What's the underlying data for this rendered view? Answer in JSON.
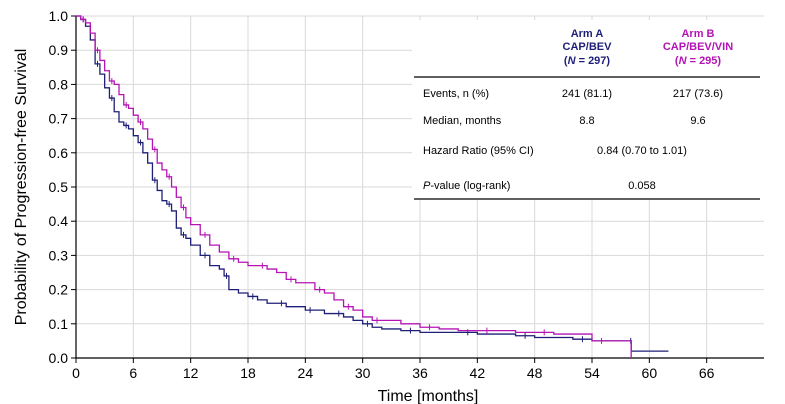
{
  "chart_data": {
    "type": "line",
    "title": "",
    "xlabel": "Time [months]",
    "ylabel": "Probability of Progression-free Survival",
    "xlim": [
      0,
      72
    ],
    "ylim": [
      0,
      1.0
    ],
    "xticks": [
      0,
      6,
      12,
      18,
      24,
      30,
      36,
      42,
      48,
      54,
      60,
      66
    ],
    "yticks": [
      "0.0",
      "0.1",
      "0.2",
      "0.3",
      "0.4",
      "0.5",
      "0.6",
      "0.7",
      "0.8",
      "0.9",
      "1.0"
    ],
    "grid": true,
    "series": [
      {
        "name": "Arm A",
        "color": "#1f1f78",
        "x": [
          0,
          0.5,
          1,
          1.5,
          2,
          2.5,
          3,
          3.5,
          4,
          4.5,
          5,
          5.5,
          6,
          6.5,
          7,
          7.5,
          8,
          8.5,
          9,
          9.5,
          10,
          10.5,
          11,
          11.5,
          12,
          13,
          14,
          15,
          15.5,
          16,
          17,
          18,
          19,
          20,
          21,
          22,
          23,
          24,
          25,
          26,
          27,
          28,
          29,
          30,
          31,
          32,
          34,
          36,
          38,
          40,
          42,
          44,
          46,
          48,
          50,
          52,
          54,
          56,
          58,
          58.1,
          62
        ],
        "y": [
          1.0,
          0.99,
          0.97,
          0.93,
          0.86,
          0.83,
          0.79,
          0.76,
          0.72,
          0.69,
          0.68,
          0.67,
          0.65,
          0.63,
          0.6,
          0.57,
          0.52,
          0.49,
          0.46,
          0.45,
          0.43,
          0.38,
          0.36,
          0.35,
          0.33,
          0.3,
          0.27,
          0.26,
          0.24,
          0.2,
          0.19,
          0.18,
          0.17,
          0.16,
          0.16,
          0.15,
          0.15,
          0.14,
          0.14,
          0.13,
          0.13,
          0.12,
          0.11,
          0.1,
          0.09,
          0.085,
          0.08,
          0.075,
          0.075,
          0.075,
          0.07,
          0.07,
          0.065,
          0.06,
          0.06,
          0.055,
          0.05,
          0.05,
          0.05,
          0.02,
          0.02
        ]
      },
      {
        "name": "Arm B",
        "color": "#b414b4",
        "x": [
          0,
          0.5,
          1,
          1.5,
          2,
          2.5,
          3,
          3.5,
          4,
          4.5,
          5,
          5.5,
          6,
          6.5,
          7,
          7.5,
          8,
          8.5,
          9,
          9.5,
          10,
          10.5,
          11,
          11.5,
          12,
          13,
          14,
          15,
          16,
          17,
          18,
          19,
          20,
          21,
          22,
          23,
          24,
          25,
          26,
          27,
          28,
          29,
          30,
          31,
          32,
          34,
          36,
          38,
          40,
          42,
          44,
          46,
          48,
          50,
          52,
          54,
          56,
          58,
          58.1
        ],
        "y": [
          1.0,
          0.99,
          0.98,
          0.95,
          0.9,
          0.87,
          0.84,
          0.81,
          0.8,
          0.77,
          0.74,
          0.73,
          0.71,
          0.69,
          0.67,
          0.64,
          0.61,
          0.57,
          0.55,
          0.53,
          0.5,
          0.47,
          0.44,
          0.41,
          0.39,
          0.36,
          0.33,
          0.31,
          0.29,
          0.28,
          0.27,
          0.27,
          0.26,
          0.25,
          0.23,
          0.22,
          0.22,
          0.2,
          0.19,
          0.17,
          0.15,
          0.14,
          0.12,
          0.11,
          0.11,
          0.1,
          0.09,
          0.085,
          0.08,
          0.08,
          0.08,
          0.075,
          0.075,
          0.07,
          0.07,
          0.05,
          0.05,
          0.05,
          0.0
        ]
      }
    ],
    "table": {
      "columns": [
        {
          "line1": "Arm A",
          "line2": "CAP/BEV",
          "n_label": "N",
          "n_rest": " = 297)",
          "color": "#1f1f78"
        },
        {
          "line1": "Arm B",
          "line2": "CAP/BEV/VIN",
          "n_label": "N",
          "n_rest": " = 295)",
          "color": "#b414b4"
        }
      ],
      "rows": [
        {
          "label": "Events, n (%)",
          "a": "241 (81.1)",
          "b": "217 (73.6)"
        },
        {
          "label": "Median, months",
          "a": "8.8",
          "b": "9.6"
        },
        {
          "label": "Hazard Ratio (95% CI)",
          "both": "0.84 (0.70 to 1.01)"
        },
        {
          "label_italic": "P",
          "label_rest": "-value (log-rank)",
          "both": "0.058"
        }
      ]
    }
  }
}
